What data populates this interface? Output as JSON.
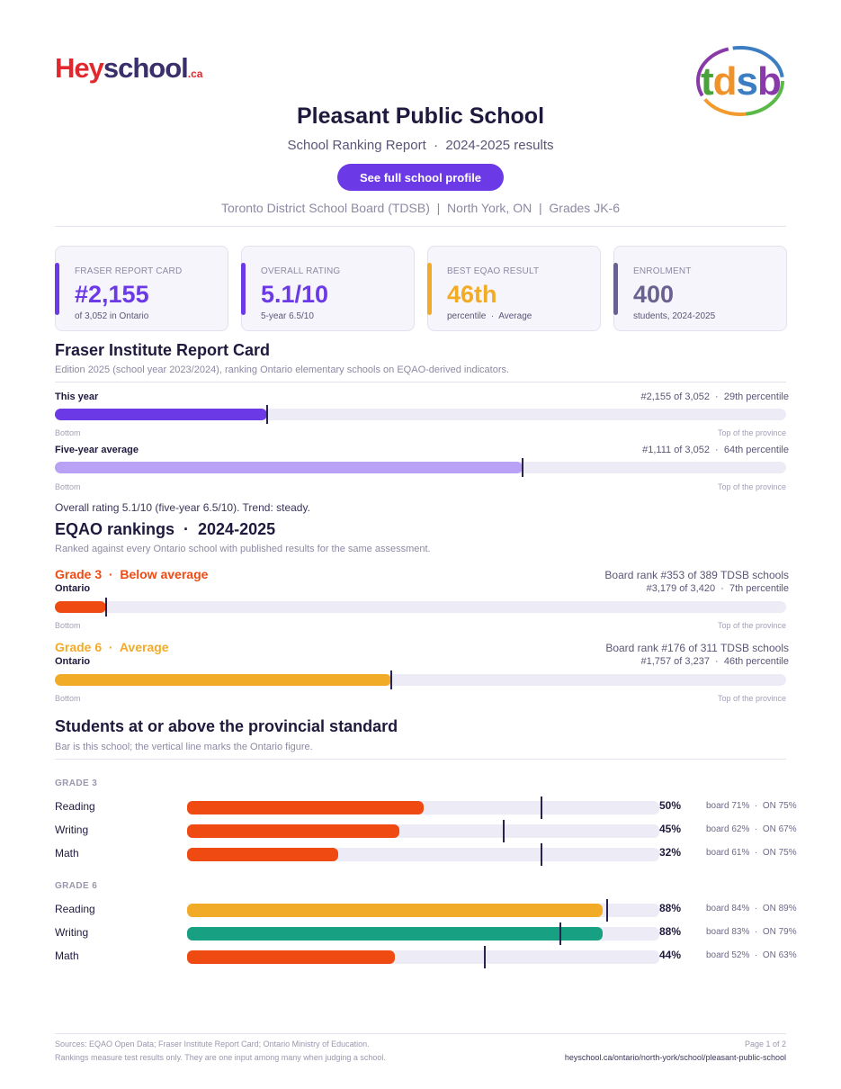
{
  "header": {
    "logo": {
      "part1": "Hey",
      "part2": "school",
      "part3": ".ca"
    },
    "board_logo": "tdsb",
    "title": "Pleasant Public School",
    "subtitle": "School Ranking Report  ·  2024-2025 results",
    "cta_label": "See full school profile",
    "meta": "Toronto District School Board (TDSB)  |  North York, ON  |  Grades JK-6"
  },
  "colors": {
    "purple": "#6b3ae6",
    "lavender": "#b9a2f5",
    "orange": "#ee4a12",
    "amber": "#f2ab27",
    "teal": "#17a081",
    "slate": "#6a6191"
  },
  "cards": [
    {
      "key": "FRASER REPORT CARD",
      "value": "#2,155",
      "sub": "of 3,052 in Ontario"
    },
    {
      "key": "OVERALL RATING",
      "value": "5.1/10",
      "sub": "5-year 6.5/10"
    },
    {
      "key": "BEST EQAO RESULT",
      "value": "46th",
      "sub": "percentile  ·  Average"
    },
    {
      "key": "ENROLMENT",
      "value": "400",
      "sub": "students, 2024-2025"
    }
  ],
  "fraser": {
    "title": "Fraser Institute Report Card",
    "desc": "Edition 2025 (school year 2023/2024), ranking Ontario elementary schools on EQAO-derived indicators.",
    "bars": [
      {
        "label": "This year",
        "right": "#2,155 of 3,052  ·  29th percentile",
        "percentile": 29
      },
      {
        "label": "Five-year average",
        "right": "#1,111 of 3,052  ·  64th percentile",
        "percentile": 64
      }
    ],
    "ends": {
      "left": "Bottom",
      "right": "Top of the province"
    },
    "summary": "Overall rating 5.1/10 (five-year 6.5/10). Trend: steady."
  },
  "eqao": {
    "title": "EQAO rankings  ·  2024-2025",
    "desc": "Ranked against every Ontario school with published results for the same assessment.",
    "grades": [
      {
        "grade": "Grade 3  ·  Below average",
        "board": "Board rank #353 of 389 TDSB schools",
        "sub": "Ontario",
        "right": "#3,179 of 3,420  ·  7th percentile",
        "percentile": 7
      },
      {
        "grade": "Grade 6  ·  Average",
        "board": "Board rank #176 of 311 TDSB schools",
        "sub": "Ontario",
        "right": "#1,757 of 3,237  ·  46th percentile",
        "percentile": 46
      }
    ]
  },
  "standard": {
    "title": "Students at or above the provincial standard",
    "desc": "Bar is this school; the vertical line marks the Ontario figure.",
    "groups": [
      {
        "heading": "GRADE 3",
        "rows": [
          {
            "subject": "Reading",
            "pct": "50%",
            "value": 50,
            "ontario": 75,
            "cmp": "board 71%  ·  ON 75%"
          },
          {
            "subject": "Writing",
            "pct": "45%",
            "value": 45,
            "ontario": 67,
            "cmp": "board 62%  ·  ON 67%"
          },
          {
            "subject": "Math",
            "pct": "32%",
            "value": 32,
            "ontario": 75,
            "cmp": "board 61%  ·  ON 75%"
          }
        ]
      },
      {
        "heading": "GRADE 6",
        "rows": [
          {
            "subject": "Reading",
            "pct": "88%",
            "value": 88,
            "ontario": 89,
            "cmp": "board 84%  ·  ON 89%"
          },
          {
            "subject": "Writing",
            "pct": "88%",
            "value": 88,
            "ontario": 79,
            "cmp": "board 83%  ·  ON 79%"
          },
          {
            "subject": "Math",
            "pct": "44%",
            "value": 44,
            "ontario": 63,
            "cmp": "board 52%  ·  ON 63%"
          }
        ]
      }
    ]
  },
  "footer": {
    "line1": "Sources: EQAO Open Data; Fraser Institute Report Card; Ontario Ministry of Education.",
    "line2": "Rankings measure test results only. They are one input among many when judging a school.",
    "page": "Page 1 of 2",
    "url": "heyschool.ca/ontario/north-york/school/pleasant-public-school"
  }
}
